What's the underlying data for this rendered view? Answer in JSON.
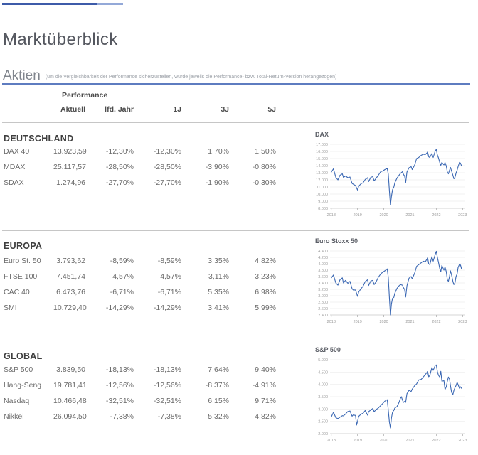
{
  "page": {
    "title": "Marktüberblick"
  },
  "section": {
    "title": "Aktien",
    "subtitle": "(um die Vergleichbarkeit der Performance sicherzustellen, wurde jeweils die Performance- bzw. Total-Return-Version herangezogen)"
  },
  "colors": {
    "accent_rule": "#5e7cc0",
    "topbar_dark": "#3d5ba9",
    "topbar_light": "#94a9d8",
    "chart_line": "#3a67b3"
  },
  "table": {
    "group_header": "Performance",
    "columns": [
      "Aktuell",
      "lfd. Jahr",
      "1J",
      "3J",
      "5J"
    ],
    "sections": [
      {
        "heading": "DEUTSCHLAND",
        "rows": [
          [
            "DAX 40",
            "13.923,59",
            "-12,30%",
            "-12,30%",
            "1,70%",
            "1,50%"
          ],
          [
            "MDAX",
            "25.117,57",
            "-28,50%",
            "-28,50%",
            "-3,90%",
            "-0,80%"
          ],
          [
            "SDAX",
            "1.274,96",
            "-27,70%",
            "-27,70%",
            "-1,90%",
            "-0,30%"
          ]
        ]
      },
      {
        "heading": "EUROPA",
        "rows": [
          [
            "Euro St. 50",
            "3.793,62",
            "-8,59%",
            "-8,59%",
            "3,35%",
            "4,82%"
          ],
          [
            "FTSE 100",
            "7.451,74",
            "4,57%",
            "4,57%",
            "3,11%",
            "3,23%"
          ],
          [
            "CAC 40",
            "6.473,76",
            "-6,71%",
            "-6,71%",
            "5,35%",
            "6,98%"
          ],
          [
            "SMI",
            "10.729,40",
            "-14,29%",
            "-14,29%",
            "3,41%",
            "5,99%"
          ]
        ]
      },
      {
        "heading": "GLOBAL",
        "rows": [
          [
            "S&P 500",
            "3.839,50",
            "-18,13%",
            "-18,13%",
            "7,64%",
            "9,40%"
          ],
          [
            "Hang-Seng",
            "19.781,41",
            "-12,56%",
            "-12,56%",
            "-8,37%",
            "-4,91%"
          ],
          [
            "Nasdaq",
            "10.466,48",
            "-32,51%",
            "-32,51%",
            "6,15%",
            "9,71%"
          ],
          [
            "Nikkei",
            "26.094,50",
            "-7,38%",
            "-7,38%",
            "5,32%",
            "4,82%"
          ]
        ]
      }
    ]
  },
  "chart_data": [
    {
      "type": "line",
      "title": "DAX",
      "line_color": "#3a67b3",
      "xlim": [
        2017.95,
        2023.1
      ],
      "ylim": [
        8000,
        17000
      ],
      "x_ticks": [
        2018,
        2019,
        2020,
        2021,
        2022,
        2023
      ],
      "x_tick_labels": [
        "2018",
        "2019",
        "2020",
        "2021",
        "2022",
        "2023"
      ],
      "y_ticks": [
        8000,
        9000,
        10000,
        11000,
        12000,
        13000,
        14000,
        15000,
        16000,
        17000
      ],
      "y_tick_labels": [
        "8.000",
        "9.000",
        "10.000",
        "11.000",
        "12.000",
        "13.000",
        "14.000",
        "15.000",
        "16.000",
        "17.000"
      ],
      "points": [
        [
          2018.0,
          13100
        ],
        [
          2018.08,
          13560
        ],
        [
          2018.17,
          12350
        ],
        [
          2018.25,
          12000
        ],
        [
          2018.33,
          12650
        ],
        [
          2018.42,
          12850
        ],
        [
          2018.46,
          12350
        ],
        [
          2018.54,
          12550
        ],
        [
          2018.63,
          12300
        ],
        [
          2018.71,
          12400
        ],
        [
          2018.79,
          11500
        ],
        [
          2018.83,
          11400
        ],
        [
          2018.92,
          11200
        ],
        [
          2019.0,
          10560
        ],
        [
          2019.04,
          11100
        ],
        [
          2019.13,
          11450
        ],
        [
          2019.21,
          11600
        ],
        [
          2019.29,
          12050
        ],
        [
          2019.38,
          12300
        ],
        [
          2019.42,
          11750
        ],
        [
          2019.5,
          12350
        ],
        [
          2019.58,
          12450
        ],
        [
          2019.63,
          11850
        ],
        [
          2019.71,
          12250
        ],
        [
          2019.79,
          12650
        ],
        [
          2019.88,
          13150
        ],
        [
          2019.96,
          13250
        ],
        [
          2020.04,
          13450
        ],
        [
          2020.13,
          13600
        ],
        [
          2020.17,
          12800
        ],
        [
          2020.21,
          10500
        ],
        [
          2020.25,
          8450
        ],
        [
          2020.29,
          9650
        ],
        [
          2020.33,
          10600
        ],
        [
          2020.38,
          11000
        ],
        [
          2020.42,
          11600
        ],
        [
          2020.5,
          12250
        ],
        [
          2020.58,
          12650
        ],
        [
          2020.63,
          12900
        ],
        [
          2020.71,
          13150
        ],
        [
          2020.75,
          12750
        ],
        [
          2020.79,
          12550
        ],
        [
          2020.83,
          11600
        ],
        [
          2020.88,
          13100
        ],
        [
          2020.96,
          13700
        ],
        [
          2021.04,
          13850
        ],
        [
          2021.08,
          13450
        ],
        [
          2021.17,
          14050
        ],
        [
          2021.25,
          15000
        ],
        [
          2021.33,
          15150
        ],
        [
          2021.42,
          15450
        ],
        [
          2021.5,
          15600
        ],
        [
          2021.58,
          15550
        ],
        [
          2021.67,
          15900
        ],
        [
          2021.71,
          15250
        ],
        [
          2021.75,
          15150
        ],
        [
          2021.83,
          15700
        ],
        [
          2021.88,
          15150
        ],
        [
          2021.96,
          16100
        ],
        [
          2022.0,
          16270
        ],
        [
          2022.04,
          15500
        ],
        [
          2022.08,
          15100
        ],
        [
          2022.13,
          14450
        ],
        [
          2022.17,
          14050
        ],
        [
          2022.21,
          14450
        ],
        [
          2022.29,
          14100
        ],
        [
          2022.33,
          14450
        ],
        [
          2022.38,
          13950
        ],
        [
          2022.42,
          13100
        ],
        [
          2022.46,
          12850
        ],
        [
          2022.5,
          13350
        ],
        [
          2022.54,
          13750
        ],
        [
          2022.58,
          13250
        ],
        [
          2022.63,
          12650
        ],
        [
          2022.67,
          12150
        ],
        [
          2022.71,
          12350
        ],
        [
          2022.75,
          12950
        ],
        [
          2022.79,
          13350
        ],
        [
          2022.83,
          13850
        ],
        [
          2022.88,
          14450
        ],
        [
          2022.92,
          14350
        ],
        [
          2022.96,
          13950
        ]
      ]
    },
    {
      "type": "line",
      "title": "Euro Stoxx 50",
      "line_color": "#3a67b3",
      "xlim": [
        2017.95,
        2023.1
      ],
      "ylim": [
        2400,
        4400
      ],
      "x_ticks": [
        2018,
        2019,
        2020,
        2021,
        2022,
        2023
      ],
      "x_tick_labels": [
        "2018",
        "2019",
        "2020",
        "2021",
        "2022",
        "2023"
      ],
      "y_ticks": [
        2400,
        2600,
        2800,
        3000,
        3200,
        3400,
        3600,
        3800,
        4000,
        4200,
        4400
      ],
      "y_tick_labels": [
        "2.400",
        "2.600",
        "2.800",
        "3.000",
        "3.200",
        "3.400",
        "3.600",
        "3.800",
        "4.000",
        "4.200",
        "4.400"
      ],
      "points": [
        [
          2018.0,
          3560
        ],
        [
          2018.08,
          3650
        ],
        [
          2018.17,
          3400
        ],
        [
          2018.25,
          3330
        ],
        [
          2018.33,
          3500
        ],
        [
          2018.42,
          3560
        ],
        [
          2018.46,
          3400
        ],
        [
          2018.54,
          3480
        ],
        [
          2018.63,
          3390
        ],
        [
          2018.71,
          3450
        ],
        [
          2018.79,
          3220
        ],
        [
          2018.83,
          3180
        ],
        [
          2018.92,
          3180
        ],
        [
          2019.0,
          2980
        ],
        [
          2019.04,
          3110
        ],
        [
          2019.13,
          3220
        ],
        [
          2019.21,
          3300
        ],
        [
          2019.29,
          3440
        ],
        [
          2019.38,
          3500
        ],
        [
          2019.42,
          3320
        ],
        [
          2019.5,
          3460
        ],
        [
          2019.58,
          3480
        ],
        [
          2019.63,
          3350
        ],
        [
          2019.71,
          3440
        ],
        [
          2019.79,
          3580
        ],
        [
          2019.88,
          3680
        ],
        [
          2019.96,
          3740
        ],
        [
          2020.04,
          3780
        ],
        [
          2020.13,
          3840
        ],
        [
          2020.17,
          3570
        ],
        [
          2020.21,
          2950
        ],
        [
          2020.25,
          2400
        ],
        [
          2020.29,
          2740
        ],
        [
          2020.33,
          2920
        ],
        [
          2020.38,
          2950
        ],
        [
          2020.42,
          3080
        ],
        [
          2020.5,
          3230
        ],
        [
          2020.58,
          3310
        ],
        [
          2020.63,
          3350
        ],
        [
          2020.71,
          3330
        ],
        [
          2020.75,
          3250
        ],
        [
          2020.79,
          3200
        ],
        [
          2020.83,
          2960
        ],
        [
          2020.88,
          3310
        ],
        [
          2020.96,
          3550
        ],
        [
          2021.04,
          3600
        ],
        [
          2021.08,
          3530
        ],
        [
          2021.17,
          3700
        ],
        [
          2021.25,
          3920
        ],
        [
          2021.33,
          3970
        ],
        [
          2021.42,
          4030
        ],
        [
          2021.5,
          4080
        ],
        [
          2021.58,
          4060
        ],
        [
          2021.67,
          4180
        ],
        [
          2021.71,
          4000
        ],
        [
          2021.75,
          3970
        ],
        [
          2021.83,
          4220
        ],
        [
          2021.88,
          4080
        ],
        [
          2021.96,
          4300
        ],
        [
          2022.0,
          4390
        ],
        [
          2022.04,
          4200
        ],
        [
          2022.08,
          4050
        ],
        [
          2022.13,
          3850
        ],
        [
          2022.17,
          3750
        ],
        [
          2022.21,
          3950
        ],
        [
          2022.29,
          3800
        ],
        [
          2022.33,
          3900
        ],
        [
          2022.38,
          3750
        ],
        [
          2022.42,
          3500
        ],
        [
          2022.46,
          3450
        ],
        [
          2022.5,
          3600
        ],
        [
          2022.54,
          3780
        ],
        [
          2022.58,
          3650
        ],
        [
          2022.63,
          3450
        ],
        [
          2022.67,
          3350
        ],
        [
          2022.71,
          3400
        ],
        [
          2022.75,
          3600
        ],
        [
          2022.79,
          3680
        ],
        [
          2022.83,
          3880
        ],
        [
          2022.88,
          3980
        ],
        [
          2022.92,
          3960
        ],
        [
          2022.96,
          3840
        ]
      ]
    },
    {
      "type": "line",
      "title": "S&P 500",
      "line_color": "#3a67b3",
      "xlim": [
        2017.95,
        2023.1
      ],
      "ylim": [
        2000,
        5000
      ],
      "x_ticks": [
        2018,
        2019,
        2020,
        2021,
        2022,
        2023
      ],
      "x_tick_labels": [
        "2018",
        "2019",
        "2020",
        "2021",
        "2022",
        "2023"
      ],
      "y_ticks": [
        2000,
        2500,
        3000,
        3500,
        4000,
        4500,
        5000
      ],
      "y_tick_labels": [
        "2.000",
        "2.500",
        "3.000",
        "3.500",
        "4.000",
        "4.500",
        "5.000"
      ],
      "points": [
        [
          2018.0,
          2680
        ],
        [
          2018.08,
          2870
        ],
        [
          2018.17,
          2650
        ],
        [
          2018.25,
          2610
        ],
        [
          2018.33,
          2670
        ],
        [
          2018.42,
          2730
        ],
        [
          2018.46,
          2720
        ],
        [
          2018.54,
          2800
        ],
        [
          2018.63,
          2900
        ],
        [
          2018.71,
          2920
        ],
        [
          2018.79,
          2710
        ],
        [
          2018.83,
          2760
        ],
        [
          2018.92,
          2740
        ],
        [
          2018.96,
          2350
        ],
        [
          2019.0,
          2500
        ],
        [
          2019.04,
          2700
        ],
        [
          2019.13,
          2790
        ],
        [
          2019.21,
          2830
        ],
        [
          2019.29,
          2940
        ],
        [
          2019.38,
          2750
        ],
        [
          2019.42,
          2890
        ],
        [
          2019.5,
          2960
        ],
        [
          2019.58,
          3020
        ],
        [
          2019.63,
          2890
        ],
        [
          2019.71,
          2980
        ],
        [
          2019.79,
          3040
        ],
        [
          2019.88,
          3140
        ],
        [
          2019.96,
          3230
        ],
        [
          2020.04,
          3320
        ],
        [
          2020.13,
          3380
        ],
        [
          2020.17,
          2950
        ],
        [
          2020.21,
          2480
        ],
        [
          2020.25,
          2230
        ],
        [
          2020.29,
          2630
        ],
        [
          2020.33,
          2870
        ],
        [
          2020.38,
          2950
        ],
        [
          2020.42,
          3040
        ],
        [
          2020.5,
          3100
        ],
        [
          2020.58,
          3270
        ],
        [
          2020.63,
          3430
        ],
        [
          2020.67,
          3500
        ],
        [
          2020.71,
          3360
        ],
        [
          2020.75,
          3270
        ],
        [
          2020.79,
          3310
        ],
        [
          2020.83,
          3270
        ],
        [
          2020.88,
          3620
        ],
        [
          2020.96,
          3760
        ],
        [
          2021.04,
          3710
        ],
        [
          2021.08,
          3810
        ],
        [
          2021.17,
          3940
        ],
        [
          2021.25,
          4020
        ],
        [
          2021.33,
          4180
        ],
        [
          2021.42,
          4200
        ],
        [
          2021.5,
          4300
        ],
        [
          2021.58,
          4400
        ],
        [
          2021.67,
          4520
        ],
        [
          2021.71,
          4310
        ],
        [
          2021.75,
          4360
        ],
        [
          2021.83,
          4680
        ],
        [
          2021.88,
          4570
        ],
        [
          2021.96,
          4770
        ],
        [
          2022.0,
          4790
        ],
        [
          2022.04,
          4520
        ],
        [
          2022.08,
          4370
        ],
        [
          2022.13,
          4300
        ],
        [
          2022.17,
          4530
        ],
        [
          2022.21,
          4130
        ],
        [
          2022.29,
          4150
        ],
        [
          2022.33,
          3790
        ],
        [
          2022.38,
          3900
        ],
        [
          2022.42,
          4130
        ],
        [
          2022.46,
          4300
        ],
        [
          2022.5,
          4220
        ],
        [
          2022.54,
          3950
        ],
        [
          2022.58,
          3680
        ],
        [
          2022.63,
          3590
        ],
        [
          2022.67,
          3750
        ],
        [
          2022.71,
          3870
        ],
        [
          2022.75,
          3950
        ],
        [
          2022.79,
          4080
        ],
        [
          2022.83,
          3990
        ],
        [
          2022.88,
          3840
        ],
        [
          2022.92,
          3900
        ],
        [
          2022.96,
          3840
        ]
      ]
    }
  ]
}
